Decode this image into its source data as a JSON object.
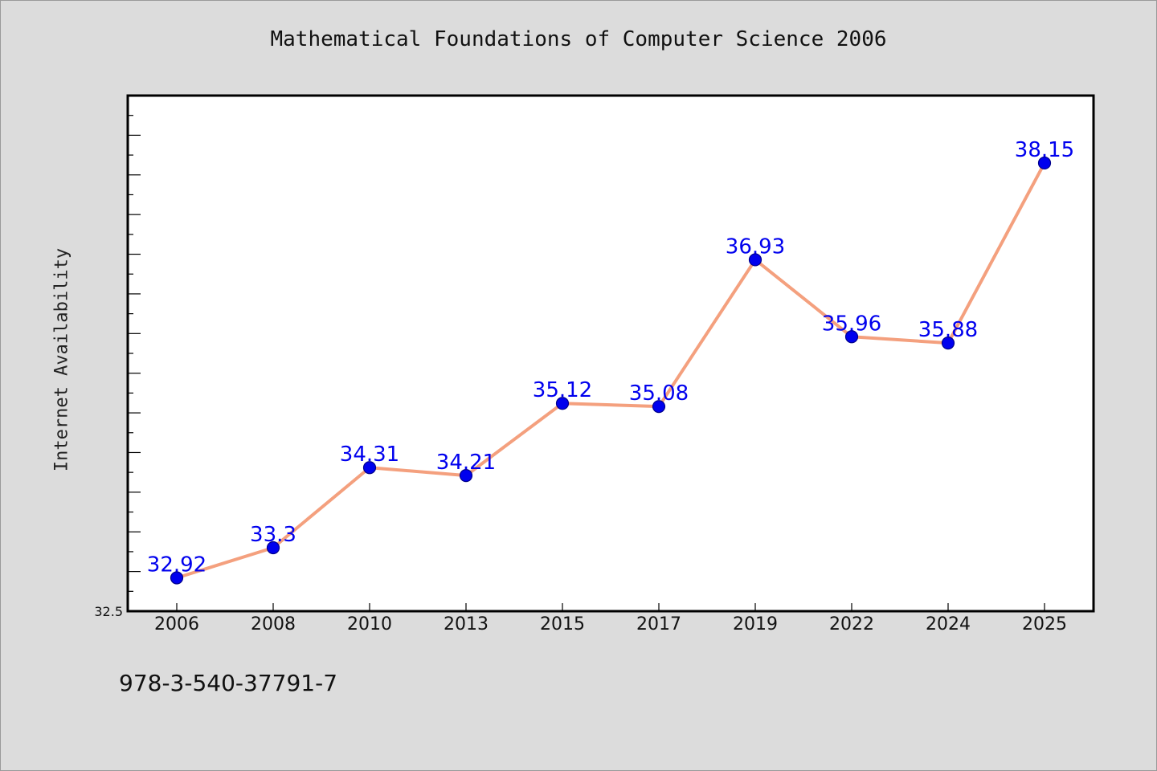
{
  "chart_data": {
    "type": "line",
    "title": "Mathematical Foundations of Computer Science 2006",
    "xlabel": "",
    "ylabel": "Internet Availability",
    "categories": [
      "2006",
      "2008",
      "2010",
      "2013",
      "2015",
      "2017",
      "2019",
      "2022",
      "2024",
      "2025"
    ],
    "series": [
      {
        "values": [
          32.92,
          33.3,
          34.31,
          34.21,
          35.12,
          35.08,
          36.93,
          35.96,
          35.88,
          38.15
        ],
        "data_labels": [
          "32.92",
          "33.3",
          "34.31",
          "34.21",
          "35.12",
          "35.08",
          "36.93",
          "35.96",
          "35.88",
          "38.15"
        ]
      }
    ],
    "y_tick_labels": [
      "32.5"
    ],
    "ylim": [
      32.5,
      39.0
    ],
    "grid": false,
    "legend": "none",
    "colors": {
      "line": "#f4a07e",
      "marker": "#0000ee",
      "marker_edge": "#00008b",
      "data_label": "#0000ee",
      "plot_background": "#ffffff",
      "page_background": "#dcdcdc"
    }
  },
  "footnote": "978-3-540-37791-7"
}
